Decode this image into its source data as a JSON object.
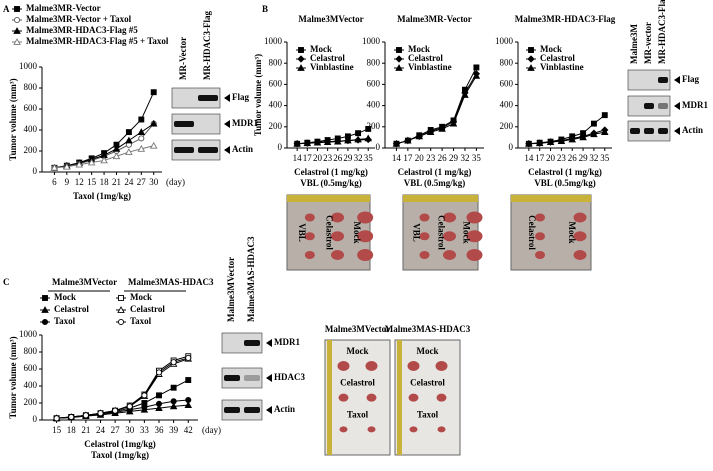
{
  "chart_data": [
    {
      "type": "line",
      "xlim": [
        3,
        32
      ],
      "xticks": [
        6,
        9,
        12,
        15,
        18,
        21,
        24,
        27,
        30
      ],
      "ylim": [
        0,
        1000
      ],
      "yticks": [
        0,
        200,
        400,
        600,
        800,
        1000
      ],
      "ylabel": "Tumor volume (mm³)",
      "xlabels": [
        "Taxol (1mg/kg)"
      ],
      "x_unit": "(day)",
      "x": [
        6,
        9,
        12,
        15,
        18,
        21,
        24,
        27,
        30
      ],
      "series": [
        {
          "name": "Malme3MR-Vector",
          "color": "#000",
          "marker": "square",
          "values": [
            40,
            60,
            90,
            130,
            180,
            260,
            380,
            500,
            760
          ]
        },
        {
          "name": "Malme3MR-Vector + Taxol",
          "color": "#555",
          "marker": "circle-open",
          "values": [
            40,
            55,
            80,
            110,
            150,
            200,
            260,
            320,
            460
          ]
        },
        {
          "name": "Malme3MR-HDAC3-Flag #5",
          "color": "#000",
          "marker": "triangle",
          "values": [
            40,
            60,
            85,
            120,
            160,
            220,
            300,
            380,
            460
          ]
        },
        {
          "name": "Malme3MR-HDAC3-Flag #5 + Taxol",
          "color": "#777",
          "marker": "triangle-open",
          "values": [
            40,
            50,
            70,
            90,
            110,
            150,
            190,
            220,
            250
          ]
        }
      ]
    },
    {
      "type": "line",
      "title": "Malme3MVector",
      "xlim": [
        11,
        37
      ],
      "xticks": [
        14,
        17,
        20,
        23,
        26,
        29,
        32,
        35
      ],
      "ylim": [
        0,
        1000
      ],
      "yticks": [
        0,
        200,
        400,
        600,
        800,
        1000
      ],
      "ylabel": "Tumor volume (mm³)",
      "xlabels": [
        "Celastrol (1 mg/kg)",
        "VBL (0.5mg/kg)"
      ],
      "x": [
        14,
        17,
        20,
        23,
        26,
        29,
        32,
        35
      ],
      "series": [
        {
          "name": "Mock",
          "color": "#000",
          "marker": "square",
          "values": [
            40,
            50,
            60,
            75,
            90,
            110,
            140,
            180
          ]
        },
        {
          "name": "Celastrol",
          "color": "#000",
          "marker": "diamond",
          "values": [
            40,
            45,
            55,
            60,
            65,
            70,
            75,
            80
          ]
        },
        {
          "name": "Vinblastine",
          "color": "#000",
          "marker": "triangle",
          "values": [
            40,
            45,
            50,
            55,
            60,
            70,
            80,
            90
          ]
        }
      ]
    },
    {
      "type": "line",
      "title": "Malme3MR-Vector",
      "xlim": [
        11,
        37
      ],
      "xticks": [
        14,
        17,
        20,
        23,
        26,
        29,
        32,
        35
      ],
      "ylim": [
        0,
        1000
      ],
      "yticks": [
        0,
        200,
        400,
        600,
        800,
        1000
      ],
      "xlabels": [
        "Celastrol (1 mg/kg)",
        "VBL (0.5mg/kg)"
      ],
      "x": [
        14,
        17,
        20,
        23,
        26,
        29,
        32,
        35
      ],
      "series": [
        {
          "name": "Mock",
          "color": "#000",
          "marker": "square",
          "values": [
            40,
            70,
            120,
            170,
            200,
            260,
            550,
            760
          ]
        },
        {
          "name": "Celastrol",
          "color": "#000",
          "marker": "diamond",
          "values": [
            40,
            70,
            110,
            160,
            190,
            250,
            520,
            700
          ]
        },
        {
          "name": "Vinblastine",
          "color": "#000",
          "marker": "triangle",
          "values": [
            40,
            70,
            110,
            150,
            180,
            230,
            500,
            680
          ]
        }
      ]
    },
    {
      "type": "line",
      "title": "Malme3MR-HDAC3-Flag",
      "xlim": [
        11,
        37
      ],
      "xticks": [
        14,
        17,
        20,
        23,
        26,
        29,
        32,
        35
      ],
      "ylim": [
        0,
        1000
      ],
      "yticks": [
        0,
        200,
        400,
        600,
        800,
        1000
      ],
      "xlabels": [
        "Celastrol (1 mg/kg)",
        "VBL (0.5mg/kg)"
      ],
      "x": [
        14,
        17,
        20,
        23,
        26,
        29,
        32,
        35
      ],
      "series": [
        {
          "name": "Mock",
          "color": "#000",
          "marker": "square",
          "values": [
            40,
            50,
            60,
            80,
            110,
            140,
            230,
            310
          ]
        },
        {
          "name": "Celastrol",
          "color": "#000",
          "marker": "diamond",
          "values": [
            40,
            45,
            55,
            70,
            90,
            110,
            140,
            170
          ]
        },
        {
          "name": "Vinblastine",
          "color": "#000",
          "marker": "triangle",
          "values": [
            40,
            45,
            55,
            65,
            80,
            100,
            130,
            150
          ]
        }
      ]
    },
    {
      "type": "line",
      "xlim": [
        12,
        44
      ],
      "xticks": [
        15,
        18,
        21,
        24,
        27,
        30,
        33,
        36,
        39,
        42
      ],
      "ylim": [
        0,
        1000
      ],
      "yticks": [
        0,
        200,
        400,
        600,
        800,
        1000
      ],
      "ylabel": "Tumor volume (mm³)",
      "xlabels": [
        "Celastrol (1mg/kg)",
        "Taxol (1mg/kg)"
      ],
      "x_unit": "(day)",
      "legend_titles": [
        "Malme3MVector",
        "Malme3MAS-HDAC3"
      ],
      "x": [
        15,
        18,
        21,
        24,
        27,
        30,
        33,
        36,
        39,
        42
      ],
      "series": [
        {
          "name": "Mock",
          "color": "#000",
          "marker": "square",
          "values": [
            20,
            35,
            55,
            75,
            100,
            140,
            200,
            290,
            380,
            470
          ]
        },
        {
          "name": "Celastrol",
          "color": "#000",
          "marker": "triangle",
          "values": [
            20,
            30,
            45,
            60,
            80,
            100,
            120,
            140,
            160,
            175
          ]
        },
        {
          "name": "Taxol",
          "color": "#000",
          "marker": "circle",
          "values": [
            20,
            30,
            50,
            70,
            90,
            120,
            150,
            190,
            220,
            235
          ]
        },
        {
          "name": "Mock",
          "color": "#000",
          "marker": "square-open",
          "values": [
            20,
            35,
            55,
            80,
            110,
            170,
            300,
            580,
            700,
            750
          ]
        },
        {
          "name": "Celastrol",
          "color": "#000",
          "marker": "triangle-open",
          "values": [
            20,
            35,
            55,
            80,
            110,
            160,
            280,
            540,
            660,
            720
          ]
        },
        {
          "name": "Taxol",
          "color": "#000",
          "marker": "circle-open",
          "values": [
            20,
            35,
            55,
            80,
            110,
            160,
            290,
            560,
            680,
            730
          ]
        }
      ]
    }
  ],
  "panels": {
    "letters": [
      "A",
      "B",
      "C"
    ],
    "blots": [
      {
        "lanes": [
          "MR-Vector",
          "MR-HDAC3-Flag"
        ],
        "bands": [
          "Flag",
          "MDR1",
          "Actin"
        ]
      },
      {
        "lanes": [
          "Malme3M",
          "MR-vector",
          "MR-HDAC3-Flag"
        ],
        "bands": [
          "Flag",
          "MDR1",
          "Actin"
        ]
      },
      {
        "lanes": [
          "Malme3MVector",
          "Malme3MAS-HDAC3"
        ],
        "bands": [
          "MDR1",
          "HDAC3",
          "Actin"
        ]
      }
    ],
    "photos": [
      {
        "labels": [
          "VBL",
          "Celastrol",
          "Mock"
        ]
      },
      {
        "labels": [
          "VBL",
          "Celastrol",
          "Mock"
        ]
      },
      {
        "labels": [
          "Celastrol",
          "Mock"
        ]
      },
      {
        "title": "Malme3MVector",
        "labels": [
          "Mock",
          "Celastrol",
          "Taxol"
        ]
      },
      {
        "title": "Malme3MAS-HDAC3",
        "labels": [
          "Mock",
          "Celastrol",
          "Taxol"
        ]
      }
    ]
  }
}
